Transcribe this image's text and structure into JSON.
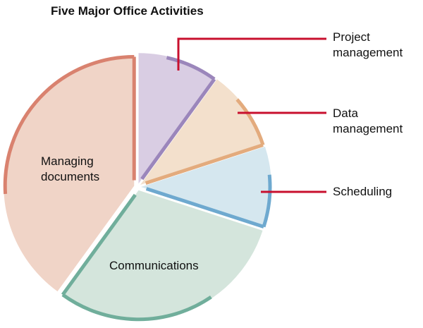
{
  "chart_data": {
    "type": "pie",
    "title": "Five Major Office Activities",
    "categories": [
      "Project management",
      "Data management",
      "Scheduling",
      "Communications",
      "Managing documents"
    ],
    "values": [
      10,
      10,
      10,
      30,
      40
    ],
    "colors": [
      "#d9cde3",
      "#f3e0cc",
      "#d5e7ef",
      "#d4e5dc",
      "#f0d4c7"
    ],
    "edge_colors": [
      "#9b86bb",
      "#e3ab7d",
      "#6ea9cf",
      "#70ae9b",
      "#d9826f"
    ],
    "callout_color": "#c8102e"
  }
}
